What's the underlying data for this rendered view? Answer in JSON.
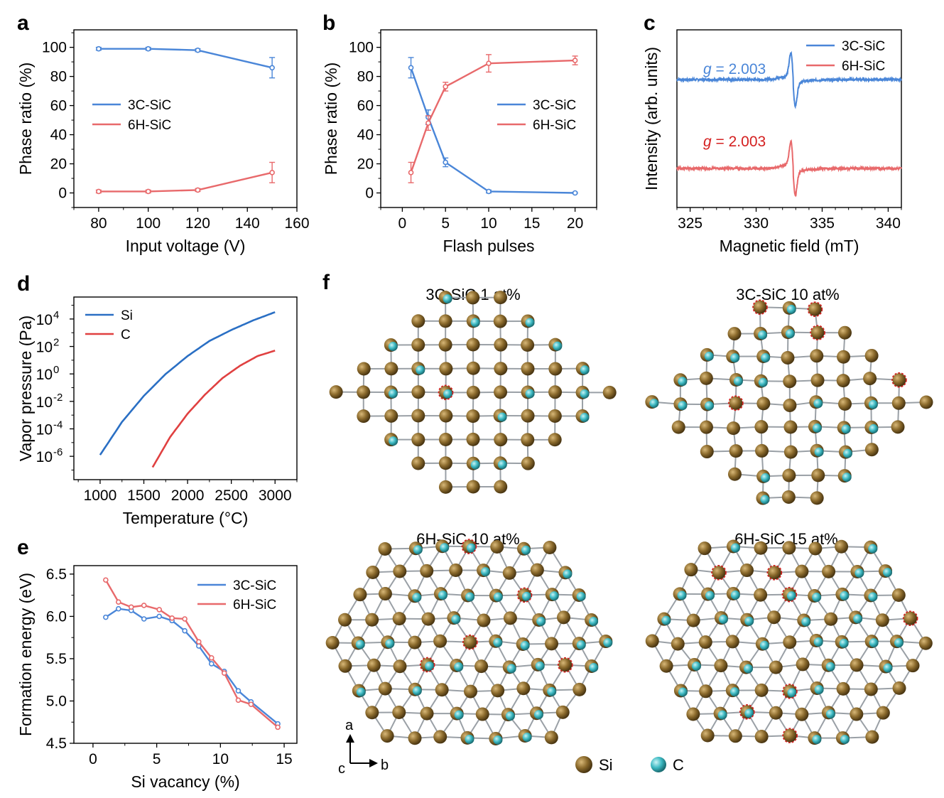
{
  "colors": {
    "blue": "#4a86d8",
    "red": "#e8696b",
    "si": "#8b6a2c",
    "c": "#3cb9c2",
    "bond": "#9aa0a6",
    "vac": "#d42020"
  },
  "panels": {
    "a": {
      "label": "a"
    },
    "b": {
      "label": "b"
    },
    "c": {
      "label": "c"
    },
    "d": {
      "label": "d"
    },
    "e": {
      "label": "e"
    },
    "f": {
      "label": "f"
    }
  },
  "chart_data": [
    {
      "id": "a",
      "type": "line",
      "xlabel": "Input voltage (V)",
      "ylabel": "Phase ratio (%)",
      "xlim": [
        70,
        160
      ],
      "ylim": [
        -10,
        112
      ],
      "xticks": [
        80,
        100,
        120,
        140,
        160
      ],
      "yticks": [
        0,
        20,
        40,
        60,
        80,
        100
      ],
      "legend_position": "middle-left",
      "series": [
        {
          "name": "3C-SiC",
          "color": "#4a86d8",
          "x": [
            80,
            100,
            120,
            150
          ],
          "y": [
            99,
            99,
            98,
            86
          ],
          "err": [
            1,
            1,
            1,
            7
          ]
        },
        {
          "name": "6H-SiC",
          "color": "#e8696b",
          "x": [
            80,
            100,
            120,
            150
          ],
          "y": [
            1,
            1,
            2,
            14
          ],
          "err": [
            1,
            1,
            1,
            7
          ]
        }
      ]
    },
    {
      "id": "b",
      "type": "line",
      "xlabel": "Flash pulses",
      "ylabel": "Phase ratio (%)",
      "xlim": [
        -2.5,
        22.5
      ],
      "ylim": [
        -10,
        112
      ],
      "xticks": [
        0,
        5,
        10,
        15,
        20
      ],
      "yticks": [
        0,
        20,
        40,
        60,
        80,
        100
      ],
      "legend_position": "middle-right",
      "series": [
        {
          "name": "3C-SiC",
          "color": "#4a86d8",
          "x": [
            1,
            3,
            5,
            10,
            20
          ],
          "y": [
            86,
            52,
            21,
            1,
            0
          ],
          "err": [
            7,
            5,
            3,
            1,
            0.5
          ]
        },
        {
          "name": "6H-SiC",
          "color": "#e8696b",
          "x": [
            1,
            3,
            5,
            10,
            20
          ],
          "y": [
            14,
            48,
            73,
            89,
            91
          ],
          "err": [
            7,
            5,
            3,
            6,
            3
          ]
        }
      ]
    },
    {
      "id": "c",
      "type": "line",
      "xlabel": "Magnetic field (mT)",
      "ylabel": "Intensity (arb. units)",
      "xlim": [
        324,
        341
      ],
      "xticks": [
        325,
        330,
        335,
        340
      ],
      "legend_position": "top-right",
      "annotations": [
        {
          "prefix": "g",
          "text": " = 2.003",
          "color": "#4a86d8",
          "series": "3C-SiC"
        },
        {
          "prefix": "g",
          "text": " = 2.003",
          "color": "#d42020",
          "series": "6H-SiC"
        }
      ],
      "series": [
        {
          "name": "3C-SiC",
          "color": "#4a86d8",
          "baseline": 0.72,
          "resonance_mT": 332.8
        },
        {
          "name": "6H-SiC",
          "color": "#e8696b",
          "baseline": 0.22,
          "resonance_mT": 332.8
        }
      ]
    },
    {
      "id": "d",
      "type": "line",
      "xlabel": "Temperature (°C)",
      "ylabel": "Vapor pressure (Pa)",
      "xlim": [
        700,
        3250
      ],
      "xticks": [
        1000,
        1500,
        2000,
        2500,
        3000
      ],
      "yscale": "log",
      "ylim_log10": [
        -7.7,
        5.6
      ],
      "yticks": [
        {
          "base": "10",
          "exp": "4",
          "v": 4
        },
        {
          "base": "10",
          "exp": "2",
          "v": 2
        },
        {
          "base": "10",
          "exp": "0",
          "v": 0
        },
        {
          "base": "10",
          "exp": "-2",
          "v": -2
        },
        {
          "base": "10",
          "exp": "-4",
          "v": -4
        },
        {
          "base": "10",
          "exp": "-6",
          "v": -6
        }
      ],
      "legend_position": "top-left",
      "series": [
        {
          "name": "Si",
          "color": "#2a6fc4",
          "x": [
            1000,
            1250,
            1500,
            1750,
            2000,
            2250,
            2500,
            2750,
            3000
          ],
          "log10y": [
            -5.9,
            -3.5,
            -1.6,
            0.0,
            1.3,
            2.4,
            3.2,
            3.9,
            4.5
          ]
        },
        {
          "name": "C",
          "color": "#e04040",
          "x": [
            1600,
            1800,
            2000,
            2200,
            2400,
            2600,
            2800,
            3000
          ],
          "log10y": [
            -6.8,
            -4.6,
            -2.9,
            -1.5,
            -0.3,
            0.6,
            1.3,
            1.7
          ]
        }
      ]
    },
    {
      "id": "e",
      "type": "line",
      "xlabel": "Si vacancy (%)",
      "ylabel": "Formation energy (eV)",
      "xlim": [
        -1.5,
        16
      ],
      "ylim": [
        4.5,
        6.6
      ],
      "xticks": [
        0,
        5,
        10,
        15
      ],
      "yticks": [
        4.5,
        5.0,
        5.5,
        6.0,
        6.5
      ],
      "legend_position": "top-right",
      "series": [
        {
          "name": "3C-SiC",
          "color": "#4a86d8",
          "x": [
            1,
            2,
            3,
            4,
            5.2,
            6.2,
            7.2,
            8.3,
            9.3,
            10.3,
            11.4,
            12.4,
            14.5
          ],
          "y": [
            5.99,
            6.09,
            6.07,
            5.97,
            6.0,
            5.95,
            5.83,
            5.65,
            5.44,
            5.35,
            5.12,
            4.99,
            4.73
          ]
        },
        {
          "name": "6H-SiC",
          "color": "#e8696b",
          "x": [
            1,
            2,
            3,
            4,
            5.2,
            6.2,
            7.2,
            8.3,
            9.3,
            10.3,
            11.4,
            12.4,
            14.5
          ],
          "y": [
            6.43,
            6.17,
            6.11,
            6.13,
            6.08,
            5.98,
            5.97,
            5.7,
            5.51,
            5.33,
            5.01,
            4.96,
            4.69
          ]
        }
      ]
    }
  ],
  "structures": [
    {
      "id": "s1",
      "title": "3C-SiC 1 at%",
      "seed": 11,
      "shape": "diamond",
      "vacancies": 1
    },
    {
      "id": "s2",
      "title": "3C-SiC 10 at%",
      "seed": 23,
      "shape": "diamond",
      "vacancies": 5
    },
    {
      "id": "s3",
      "title": "6H-SiC 10 at%",
      "seed": 37,
      "shape": "hexwide",
      "vacancies": 5
    },
    {
      "id": "s4",
      "title": "6H-SiC 15 at%",
      "seed": 51,
      "shape": "hexwide",
      "vacancies": 7
    }
  ],
  "axes_indicator": {
    "a": "a",
    "b": "b",
    "c": "c"
  },
  "atom_legend": {
    "si": "Si",
    "c": "C"
  }
}
